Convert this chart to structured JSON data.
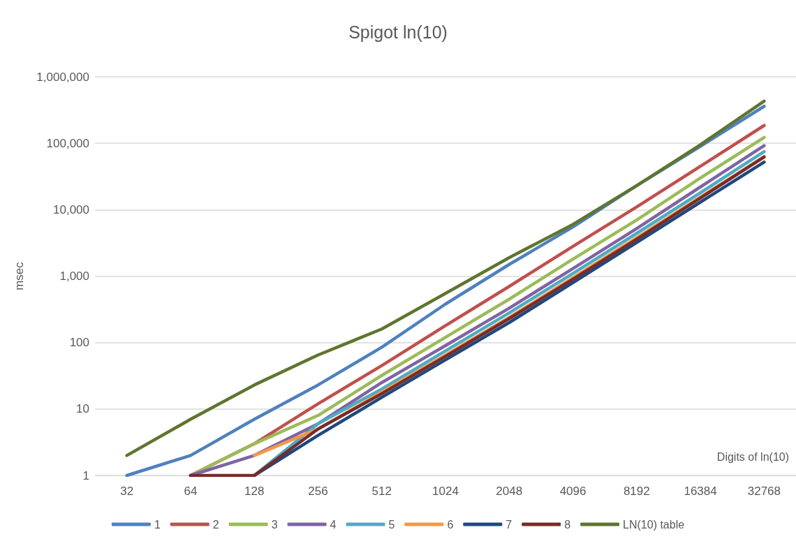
{
  "chart_data": {
    "type": "line",
    "title": "Spigot ln(10)",
    "xlabel": "Digits of ln(10)",
    "ylabel": "msec",
    "categories": [
      "32",
      "64",
      "128",
      "256",
      "512",
      "1024",
      "2048",
      "4096",
      "8192",
      "16384",
      "32768"
    ],
    "log": "y",
    "ylim": [
      1,
      1000000
    ],
    "yticks": [
      1,
      10,
      100,
      {
        "value": 1000,
        "label": "1,000"
      },
      {
        "value": 10000,
        "label": "10,000"
      },
      {
        "value": 100000,
        "label": "100,000"
      },
      {
        "value": 1000000,
        "label": "1,000,000"
      }
    ],
    "grid": "y",
    "legend": "bottom",
    "marker": "none",
    "series": [
      {
        "name": "1",
        "color": "#4f81bd",
        "values": [
          1,
          2,
          7,
          23,
          85,
          380,
          1500,
          5500,
          23000,
          90000,
          360000
        ]
      },
      {
        "name": "2",
        "color": "#c0504d",
        "values": [
          null,
          1,
          3,
          12,
          45,
          180,
          700,
          2800,
          11000,
          45000,
          185000
        ]
      },
      {
        "name": "3",
        "color": "#9bbb59",
        "values": [
          null,
          1,
          3,
          8,
          32,
          120,
          450,
          1800,
          7000,
          30000,
          122000
        ]
      },
      {
        "name": "4",
        "color": "#8064a2",
        "values": [
          null,
          1,
          2,
          6,
          25,
          90,
          330,
          1300,
          5200,
          22000,
          92000
        ]
      },
      {
        "name": "5",
        "color": "#4bacc6",
        "values": [
          null,
          null,
          1,
          6,
          20,
          75,
          280,
          1100,
          4400,
          18000,
          75000
        ]
      },
      {
        "name": "6",
        "color": "#f79646",
        "values": [
          null,
          null,
          2,
          5,
          18,
          65,
          240,
          950,
          3800,
          15500,
          63000
        ]
      },
      {
        "name": "7",
        "color": "#1f497d",
        "values": [
          null,
          null,
          1,
          4,
          15,
          55,
          200,
          800,
          3200,
          13000,
          52000
        ]
      },
      {
        "name": "8",
        "color": "#772c2a",
        "values": [
          null,
          1,
          1,
          5,
          17,
          62,
          230,
          900,
          3600,
          15000,
          62000
        ]
      },
      {
        "name": "LN(10) table",
        "color": "#5f7530",
        "values": [
          2,
          7,
          23,
          65,
          160,
          550,
          1900,
          6000,
          23000,
          95000,
          430000
        ]
      }
    ]
  }
}
